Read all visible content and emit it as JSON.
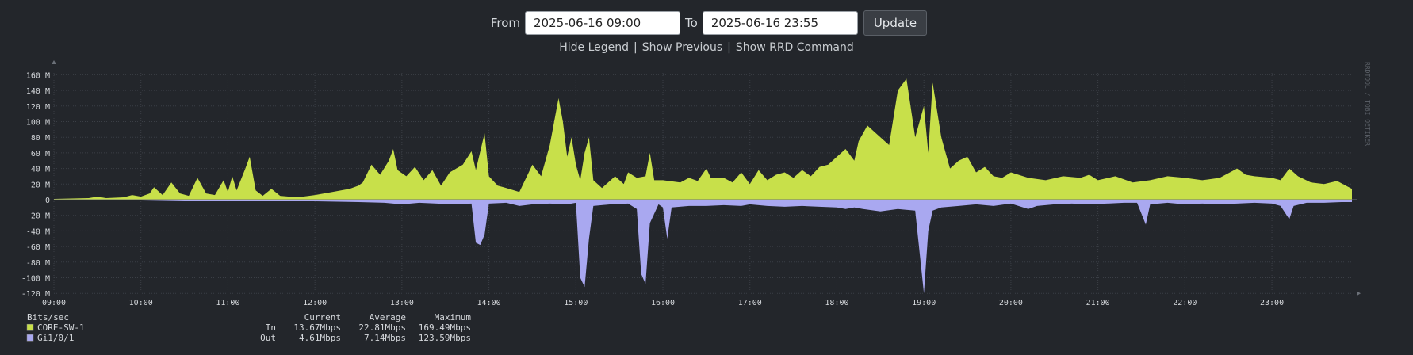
{
  "controls": {
    "from_label": "From",
    "from_value": "2025-06-16 09:00",
    "to_label": "To",
    "to_value": "2025-06-16 23:55",
    "update_label": "Update"
  },
  "links": {
    "hide_legend": "Hide Legend",
    "show_previous": "Show Previous",
    "show_rrd": "Show RRD Command",
    "separator": "|"
  },
  "watermark": "RRDTOOL / TOBI OETIKER",
  "chart_data": {
    "type": "area",
    "x_ticks": [
      "09:00",
      "10:00",
      "11:00",
      "12:00",
      "13:00",
      "14:00",
      "15:00",
      "16:00",
      "17:00",
      "18:00",
      "19:00",
      "20:00",
      "21:00",
      "22:00",
      "23:00"
    ],
    "y_ticks": [
      "160 M",
      "140 M",
      "120 M",
      "100 M",
      "80 M",
      "60 M",
      "40 M",
      "20 M",
      "0",
      "-20 M",
      "-40 M",
      "-60 M",
      "-80 M",
      "-100 M",
      "-120 M"
    ],
    "ylim": [
      -120,
      170
    ],
    "xlim": [
      9.0,
      23.92
    ],
    "grid": true,
    "colors": {
      "in": "#c8e04a",
      "out": "#a9a8f0"
    },
    "series_in": [
      [
        9.0,
        1
      ],
      [
        9.2,
        1.5
      ],
      [
        9.4,
        2
      ],
      [
        9.5,
        4
      ],
      [
        9.6,
        2
      ],
      [
        9.8,
        3
      ],
      [
        9.9,
        6
      ],
      [
        10.0,
        4
      ],
      [
        10.1,
        8
      ],
      [
        10.15,
        16
      ],
      [
        10.25,
        6
      ],
      [
        10.35,
        22
      ],
      [
        10.45,
        8
      ],
      [
        10.55,
        5
      ],
      [
        10.65,
        28
      ],
      [
        10.75,
        8
      ],
      [
        10.85,
        6
      ],
      [
        10.95,
        25
      ],
      [
        11.0,
        10
      ],
      [
        11.05,
        30
      ],
      [
        11.1,
        12
      ],
      [
        11.2,
        40
      ],
      [
        11.25,
        55
      ],
      [
        11.32,
        12
      ],
      [
        11.4,
        5
      ],
      [
        11.5,
        14
      ],
      [
        11.6,
        5
      ],
      [
        11.8,
        3
      ],
      [
        12.0,
        6
      ],
      [
        12.2,
        10
      ],
      [
        12.4,
        14
      ],
      [
        12.5,
        18
      ],
      [
        12.55,
        22
      ],
      [
        12.65,
        45
      ],
      [
        12.75,
        32
      ],
      [
        12.85,
        50
      ],
      [
        12.9,
        65
      ],
      [
        12.95,
        38
      ],
      [
        13.05,
        30
      ],
      [
        13.15,
        42
      ],
      [
        13.25,
        25
      ],
      [
        13.35,
        38
      ],
      [
        13.45,
        18
      ],
      [
        13.55,
        35
      ],
      [
        13.7,
        45
      ],
      [
        13.8,
        62
      ],
      [
        13.85,
        38
      ],
      [
        13.95,
        85
      ],
      [
        14.0,
        30
      ],
      [
        14.1,
        18
      ],
      [
        14.2,
        15
      ],
      [
        14.35,
        10
      ],
      [
        14.5,
        45
      ],
      [
        14.6,
        30
      ],
      [
        14.7,
        70
      ],
      [
        14.8,
        130
      ],
      [
        14.85,
        100
      ],
      [
        14.9,
        55
      ],
      [
        14.95,
        80
      ],
      [
        15.0,
        45
      ],
      [
        15.05,
        25
      ],
      [
        15.1,
        60
      ],
      [
        15.15,
        80
      ],
      [
        15.2,
        25
      ],
      [
        15.3,
        15
      ],
      [
        15.45,
        30
      ],
      [
        15.55,
        20
      ],
      [
        15.6,
        35
      ],
      [
        15.7,
        28
      ],
      [
        15.8,
        30
      ],
      [
        15.85,
        60
      ],
      [
        15.9,
        25
      ],
      [
        16.0,
        25
      ],
      [
        16.2,
        22
      ],
      [
        16.3,
        28
      ],
      [
        16.4,
        24
      ],
      [
        16.5,
        40
      ],
      [
        16.55,
        28
      ],
      [
        16.7,
        28
      ],
      [
        16.8,
        22
      ],
      [
        16.9,
        35
      ],
      [
        17.0,
        20
      ],
      [
        17.1,
        38
      ],
      [
        17.2,
        25
      ],
      [
        17.3,
        32
      ],
      [
        17.4,
        35
      ],
      [
        17.5,
        28
      ],
      [
        17.6,
        38
      ],
      [
        17.7,
        30
      ],
      [
        17.8,
        42
      ],
      [
        17.9,
        45
      ],
      [
        18.0,
        55
      ],
      [
        18.1,
        65
      ],
      [
        18.2,
        50
      ],
      [
        18.25,
        75
      ],
      [
        18.35,
        95
      ],
      [
        18.45,
        85
      ],
      [
        18.55,
        75
      ],
      [
        18.6,
        70
      ],
      [
        18.7,
        140
      ],
      [
        18.8,
        155
      ],
      [
        18.9,
        80
      ],
      [
        19.0,
        120
      ],
      [
        19.05,
        60
      ],
      [
        19.1,
        150
      ],
      [
        19.2,
        80
      ],
      [
        19.3,
        40
      ],
      [
        19.4,
        50
      ],
      [
        19.5,
        55
      ],
      [
        19.6,
        35
      ],
      [
        19.7,
        42
      ],
      [
        19.8,
        30
      ],
      [
        19.9,
        28
      ],
      [
        20.0,
        35
      ],
      [
        20.2,
        28
      ],
      [
        20.4,
        25
      ],
      [
        20.6,
        30
      ],
      [
        20.8,
        28
      ],
      [
        20.9,
        32
      ],
      [
        21.0,
        25
      ],
      [
        21.2,
        30
      ],
      [
        21.4,
        22
      ],
      [
        21.6,
        25
      ],
      [
        21.8,
        30
      ],
      [
        22.0,
        28
      ],
      [
        22.2,
        25
      ],
      [
        22.4,
        28
      ],
      [
        22.6,
        40
      ],
      [
        22.7,
        32
      ],
      [
        22.8,
        30
      ],
      [
        23.0,
        28
      ],
      [
        23.1,
        25
      ],
      [
        23.2,
        40
      ],
      [
        23.3,
        30
      ],
      [
        23.45,
        22
      ],
      [
        23.6,
        20
      ],
      [
        23.75,
        24
      ],
      [
        23.85,
        18
      ],
      [
        23.92,
        14
      ]
    ],
    "series_out": [
      [
        9.0,
        -1
      ],
      [
        9.5,
        -1
      ],
      [
        10.0,
        -1
      ],
      [
        10.5,
        -2
      ],
      [
        11.0,
        -2
      ],
      [
        11.5,
        -2
      ],
      [
        12.0,
        -2
      ],
      [
        12.5,
        -3
      ],
      [
        12.8,
        -4
      ],
      [
        13.0,
        -6
      ],
      [
        13.2,
        -4
      ],
      [
        13.4,
        -5
      ],
      [
        13.6,
        -6
      ],
      [
        13.8,
        -5
      ],
      [
        13.85,
        -55
      ],
      [
        13.9,
        -58
      ],
      [
        13.95,
        -45
      ],
      [
        14.0,
        -5
      ],
      [
        14.2,
        -4
      ],
      [
        14.35,
        -8
      ],
      [
        14.5,
        -6
      ],
      [
        14.7,
        -5
      ],
      [
        14.9,
        -6
      ],
      [
        15.0,
        -4
      ],
      [
        15.05,
        -100
      ],
      [
        15.1,
        -112
      ],
      [
        15.15,
        -50
      ],
      [
        15.2,
        -8
      ],
      [
        15.4,
        -6
      ],
      [
        15.6,
        -5
      ],
      [
        15.7,
        -12
      ],
      [
        15.75,
        -95
      ],
      [
        15.8,
        -108
      ],
      [
        15.85,
        -30
      ],
      [
        15.95,
        -6
      ],
      [
        16.0,
        -10
      ],
      [
        16.05,
        -50
      ],
      [
        16.1,
        -10
      ],
      [
        16.3,
        -8
      ],
      [
        16.5,
        -8
      ],
      [
        16.7,
        -7
      ],
      [
        16.9,
        -8
      ],
      [
        17.0,
        -6
      ],
      [
        17.2,
        -8
      ],
      [
        17.4,
        -9
      ],
      [
        17.6,
        -8
      ],
      [
        17.8,
        -9
      ],
      [
        18.0,
        -10
      ],
      [
        18.1,
        -12
      ],
      [
        18.2,
        -10
      ],
      [
        18.3,
        -12
      ],
      [
        18.5,
        -15
      ],
      [
        18.7,
        -12
      ],
      [
        18.9,
        -14
      ],
      [
        19.0,
        -120
      ],
      [
        19.05,
        -40
      ],
      [
        19.1,
        -14
      ],
      [
        19.2,
        -10
      ],
      [
        19.4,
        -8
      ],
      [
        19.6,
        -6
      ],
      [
        19.8,
        -8
      ],
      [
        20.0,
        -5
      ],
      [
        20.2,
        -12
      ],
      [
        20.3,
        -8
      ],
      [
        20.5,
        -6
      ],
      [
        20.7,
        -5
      ],
      [
        20.9,
        -6
      ],
      [
        21.1,
        -5
      ],
      [
        21.3,
        -4
      ],
      [
        21.45,
        -4
      ],
      [
        21.55,
        -32
      ],
      [
        21.6,
        -6
      ],
      [
        21.8,
        -4
      ],
      [
        22.0,
        -6
      ],
      [
        22.2,
        -5
      ],
      [
        22.4,
        -6
      ],
      [
        22.6,
        -5
      ],
      [
        22.8,
        -4
      ],
      [
        23.0,
        -5
      ],
      [
        23.1,
        -8
      ],
      [
        23.2,
        -25
      ],
      [
        23.25,
        -8
      ],
      [
        23.4,
        -4
      ],
      [
        23.6,
        -4
      ],
      [
        23.8,
        -3
      ],
      [
        23.92,
        -3
      ]
    ],
    "legend": {
      "unit": "Bits/sec",
      "col_current": "Current",
      "col_average": "Average",
      "col_maximum": "Maximum",
      "rows": [
        {
          "name": "CORE-SW-1",
          "dir": "In",
          "current": "13.67Mbps",
          "average": "22.81Mbps",
          "maximum": "169.49Mbps",
          "color": "#c8e04a"
        },
        {
          "name": "Gi1/0/1",
          "dir": "Out",
          "current": "4.61Mbps",
          "average": "7.14Mbps",
          "maximum": "123.59Mbps",
          "color": "#a9a8f0"
        }
      ]
    }
  }
}
